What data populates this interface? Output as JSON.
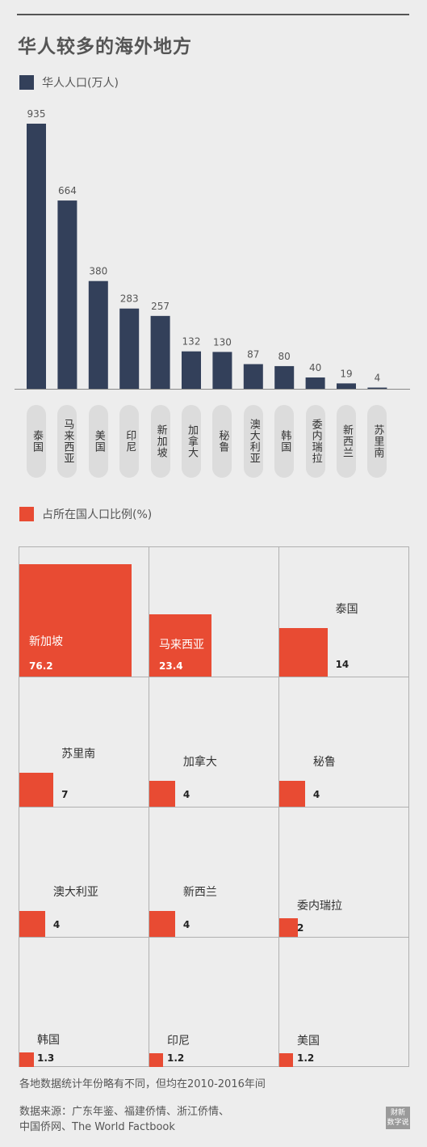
{
  "title": "华人较多的海外地方",
  "note": "各地数据统计年份略有不同，但均在2010-2016年间",
  "source_line1": "数据来源：广东年鉴、福建侨情、浙江侨情、",
  "source_line2": "中国侨网、The World Factbook",
  "logo": {
    "line1": "财新",
    "line2": "数字说"
  },
  "colors": {
    "bar": "#33405a",
    "square": "#e84b33"
  },
  "chart_data": [
    {
      "type": "bar",
      "legend": "华人人口(万人)",
      "categories": [
        "泰国",
        "马来西亚",
        "美国",
        "印尼",
        "新加坡",
        "加拿大",
        "秘鲁",
        "澳大利亚",
        "韩国",
        "委内瑞拉",
        "新西兰",
        "苏里南"
      ],
      "values": [
        935,
        664,
        380,
        283,
        257,
        132,
        130,
        87,
        80,
        40,
        19,
        4
      ],
      "ylim": [
        0,
        935
      ],
      "grid": false
    },
    {
      "type": "area",
      "legend": "占所在国人口比例(%)",
      "categories": [
        "新加坡",
        "马来西亚",
        "泰国",
        "苏里南",
        "加拿大",
        "秘鲁",
        "澳大利亚",
        "新西兰",
        "委内瑞拉",
        "韩国",
        "印尼",
        "美国"
      ],
      "values": [
        76.2,
        23.4,
        14,
        7,
        4,
        4,
        4,
        4,
        2,
        1.3,
        1.2,
        1.2
      ],
      "value_labels": [
        "76.2",
        "23.4",
        "14",
        "7",
        "4",
        "4",
        "4",
        "4",
        "2",
        "1.3",
        "1.2",
        "1.2"
      ]
    }
  ]
}
